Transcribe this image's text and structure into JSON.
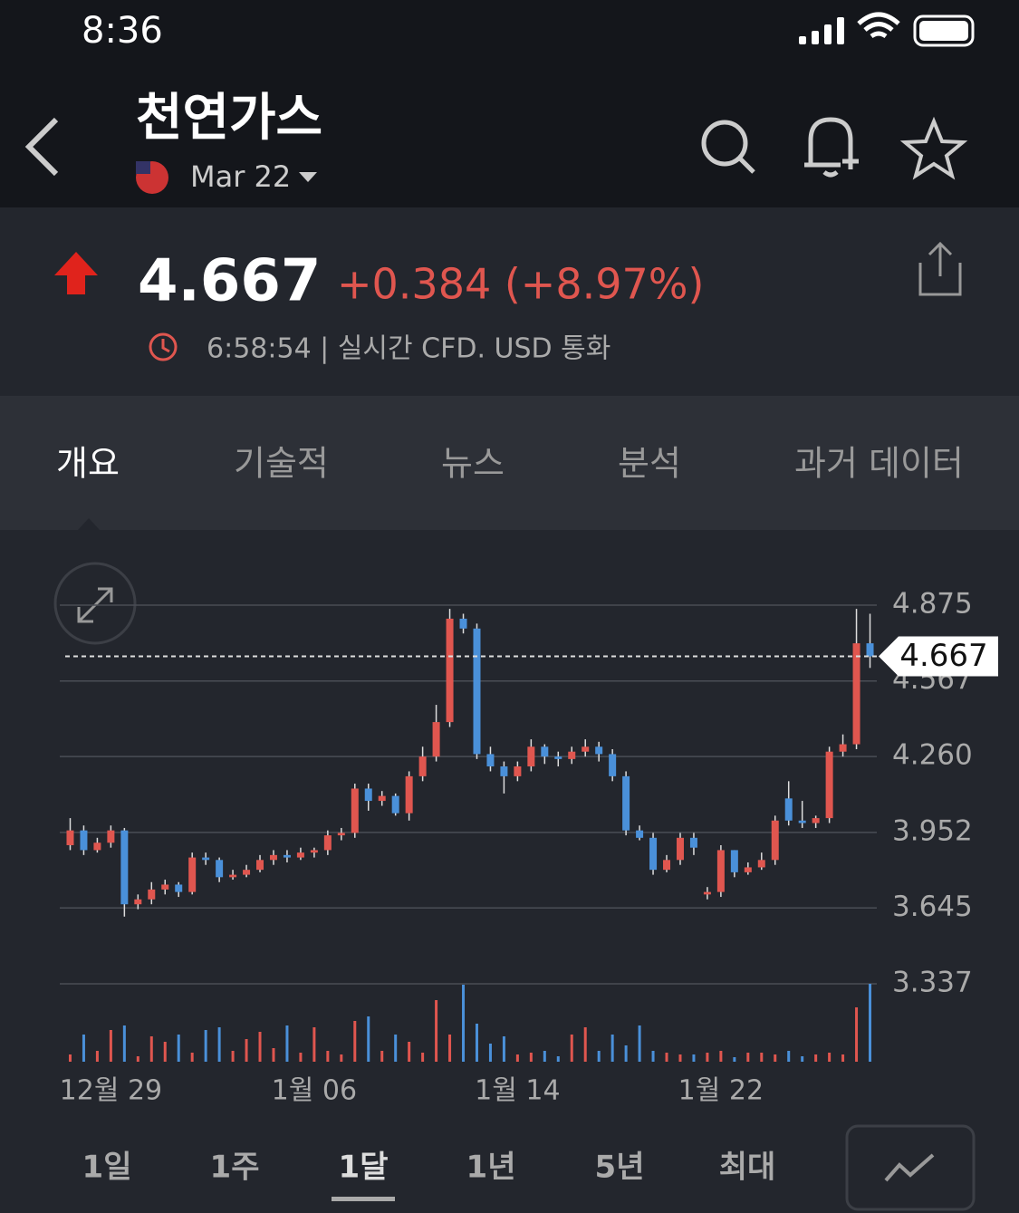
{
  "status": {
    "time": "8:36"
  },
  "header": {
    "title": "천연가스",
    "contract": "Mar 22"
  },
  "quote": {
    "price": 4.667,
    "change": "+0.384 (+8.97%)",
    "meta": "6:58:54 | 실시간 CFD. USD 통화"
  },
  "tabs": {
    "items": [
      "개요",
      "기술적",
      "뉴스",
      "분석",
      "과거 데이터"
    ],
    "active": 0
  },
  "chart_data": {
    "type": "candlestick",
    "categories": [
      null,
      null,
      null,
      "12월 29",
      null,
      null,
      null,
      null,
      null,
      null,
      null,
      null,
      null,
      null,
      null,
      null,
      null,
      null,
      "1월 06",
      null,
      null,
      null,
      null,
      null,
      null,
      null,
      null,
      null,
      null,
      null,
      null,
      null,
      null,
      "1월 14",
      null,
      null,
      null,
      null,
      null,
      null,
      null,
      null,
      null,
      null,
      null,
      null,
      null,
      null,
      "1월 22",
      null,
      null,
      null,
      null,
      null,
      null,
      null,
      null,
      null,
      null,
      null
    ],
    "open": [
      3.9,
      3.96,
      3.88,
      3.91,
      3.96,
      3.66,
      3.68,
      3.72,
      3.74,
      3.71,
      3.85,
      3.84,
      3.77,
      3.78,
      3.8,
      3.84,
      3.86,
      3.85,
      3.87,
      3.88,
      3.94,
      3.95,
      4.13,
      4.08,
      4.1,
      4.03,
      4.18,
      4.26,
      4.4,
      4.82,
      4.78,
      4.27,
      4.22,
      4.18,
      4.22,
      4.3,
      4.26,
      4.25,
      4.28,
      4.3,
      4.27,
      4.18,
      3.96,
      3.93,
      3.8,
      3.84,
      3.93,
      3.7,
      3.71,
      3.88,
      3.79,
      3.81,
      3.84,
      4.09,
      4.0,
      3.99,
      4.01,
      4.28,
      4.31,
      4.72
    ],
    "high": [
      4.01,
      3.98,
      3.93,
      3.98,
      3.97,
      3.7,
      3.75,
      3.76,
      3.75,
      3.87,
      3.87,
      3.85,
      3.8,
      3.82,
      3.86,
      3.88,
      3.88,
      3.89,
      3.89,
      3.96,
      3.97,
      4.15,
      4.15,
      4.12,
      4.11,
      4.2,
      4.3,
      4.47,
      4.86,
      4.84,
      4.8,
      4.3,
      4.24,
      4.24,
      4.33,
      4.31,
      4.28,
      4.3,
      4.33,
      4.32,
      4.29,
      4.2,
      3.98,
      3.95,
      3.86,
      3.95,
      3.95,
      3.73,
      3.9,
      3.88,
      3.83,
      3.87,
      4.02,
      4.16,
      4.08,
      4.02,
      4.3,
      4.35,
      4.86,
      4.84
    ],
    "low": [
      3.88,
      3.86,
      3.87,
      3.89,
      3.61,
      3.64,
      3.66,
      3.7,
      3.69,
      3.7,
      3.82,
      3.75,
      3.76,
      3.77,
      3.79,
      3.82,
      3.83,
      3.84,
      3.85,
      3.86,
      3.92,
      3.93,
      4.04,
      4.06,
      4.02,
      4.0,
      4.16,
      4.24,
      4.38,
      4.76,
      4.25,
      4.2,
      4.11,
      4.16,
      4.2,
      4.23,
      4.22,
      4.23,
      4.26,
      4.24,
      4.16,
      3.94,
      3.92,
      3.78,
      3.79,
      3.82,
      3.86,
      3.68,
      3.69,
      3.77,
      3.78,
      3.8,
      3.82,
      3.98,
      3.97,
      3.97,
      3.99,
      4.26,
      4.29,
      4.62
    ],
    "close": [
      3.96,
      3.88,
      3.91,
      3.96,
      3.66,
      3.68,
      3.72,
      3.74,
      3.71,
      3.85,
      3.84,
      3.77,
      3.78,
      3.8,
      3.84,
      3.86,
      3.85,
      3.87,
      3.88,
      3.94,
      3.95,
      4.13,
      4.08,
      4.1,
      4.03,
      4.18,
      4.26,
      4.4,
      4.82,
      4.78,
      4.27,
      4.22,
      4.18,
      4.22,
      4.3,
      4.26,
      4.25,
      4.28,
      4.3,
      4.27,
      4.18,
      3.96,
      3.93,
      3.8,
      3.84,
      3.93,
      3.89,
      3.71,
      3.88,
      3.79,
      3.81,
      3.84,
      4.0,
      4.0,
      3.99,
      4.01,
      4.28,
      4.31,
      4.72,
      4.667
    ],
    "volume": [
      8,
      30,
      12,
      35,
      40,
      6,
      28,
      22,
      30,
      10,
      35,
      38,
      12,
      25,
      33,
      15,
      40,
      10,
      38,
      12,
      8,
      45,
      50,
      12,
      30,
      22,
      10,
      68,
      30,
      85,
      42,
      20,
      28,
      8,
      10,
      12,
      6,
      30,
      38,
      12,
      30,
      18,
      40,
      12,
      10,
      8,
      8,
      10,
      12,
      5,
      10,
      10,
      8,
      12,
      6,
      8,
      10,
      8,
      60,
      86
    ],
    "up_color": "#e0564f",
    "down_color": "#4a90d9",
    "ylim": [
      3.337,
      4.875
    ],
    "yticks": [
      4.875,
      4.567,
      {
        "value": 4.26,
        "label": "4.260"
      },
      3.952,
      3.645,
      3.337
    ],
    "grid": true
  },
  "ranges": {
    "items": [
      "1일",
      "1주",
      "1달",
      "1년",
      "5년",
      "최대"
    ],
    "active": 2
  }
}
